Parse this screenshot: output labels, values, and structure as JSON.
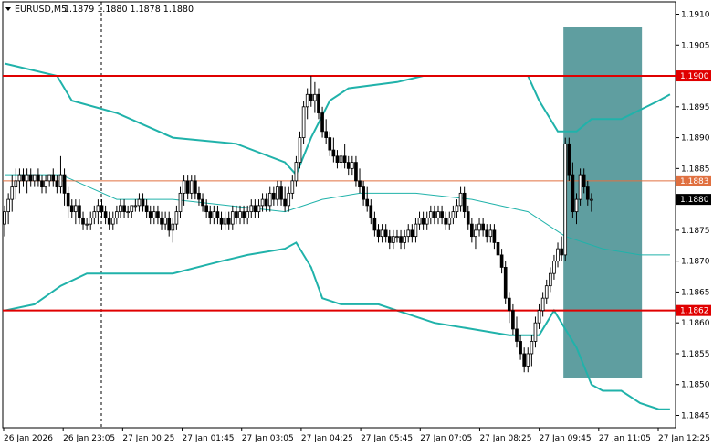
{
  "header": {
    "arrow_icon": "triangle-down-icon",
    "symbol": "EURUSD,M5",
    "ohlc": "1.1879 1.1880 1.1878 1.1880"
  },
  "colors": {
    "candle": "#000000",
    "bollinger": "#20b2aa",
    "level_line": "#e00000",
    "price_line": "#e07040",
    "highlight": "#5f9ea0",
    "current_price_bg": "#000000"
  },
  "chart_data": {
    "type": "candlestick",
    "symbol": "EURUSD",
    "timeframe": "M5",
    "ylim": [
      1.1843,
      1.1912
    ],
    "y_ticks": [
      "1.1910",
      "1.1905",
      "1.1900",
      "1.1895",
      "1.1890",
      "1.1885",
      "1.1880",
      "1.1875",
      "1.1870",
      "1.1865",
      "1.1860",
      "1.1855",
      "1.1850",
      "1.1845"
    ],
    "x_ticks": [
      "26 Jan 2026",
      "26 Jan 23:05",
      "27 Jan 00:25",
      "27 Jan 01:45",
      "27 Jan 03:05",
      "27 Jan 04:25",
      "27 Jan 05:45",
      "27 Jan 07:05",
      "27 Jan 08:25",
      "27 Jan 09:45",
      "27 Jan 11:05",
      "27 Jan 12:25"
    ],
    "horizontal_levels": [
      {
        "price": 1.19,
        "label": "1.1900",
        "style": "red-thick"
      },
      {
        "price": 1.1862,
        "label": "1.1862",
        "style": "red-thick"
      },
      {
        "price": 1.1883,
        "label": "1.1883",
        "style": "orange-thin"
      }
    ],
    "current_price": {
      "price": 1.188,
      "label": "1.1880"
    },
    "highlight_zone": {
      "x_start_bar": 150,
      "x_end_bar": 171,
      "y_from": 1.1908,
      "y_to": 1.1851
    },
    "bollinger_upper": [
      [
        0,
        1.1902
      ],
      [
        14,
        1.19
      ],
      [
        18,
        1.1896
      ],
      [
        30,
        1.1894
      ],
      [
        45,
        1.189
      ],
      [
        62,
        1.1889
      ],
      [
        75,
        1.1886
      ],
      [
        78,
        1.1884
      ],
      [
        82,
        1.189
      ],
      [
        87,
        1.1896
      ],
      [
        92,
        1.1898
      ],
      [
        105,
        1.1899
      ],
      [
        112,
        1.19
      ],
      [
        140,
        1.19
      ],
      [
        143,
        1.1896
      ],
      [
        148,
        1.1891
      ],
      [
        153,
        1.1891
      ],
      [
        157,
        1.1893
      ],
      [
        165,
        1.1893
      ],
      [
        175,
        1.1896
      ],
      [
        178,
        1.1897
      ]
    ],
    "bollinger_middle": [
      [
        0,
        1.1884
      ],
      [
        15,
        1.1884
      ],
      [
        30,
        1.188
      ],
      [
        45,
        1.188
      ],
      [
        60,
        1.1879
      ],
      [
        75,
        1.1878
      ],
      [
        85,
        1.188
      ],
      [
        95,
        1.1881
      ],
      [
        110,
        1.1881
      ],
      [
        125,
        1.188
      ],
      [
        140,
        1.1878
      ],
      [
        150,
        1.1874
      ],
      [
        160,
        1.1872
      ],
      [
        170,
        1.1871
      ],
      [
        178,
        1.1871
      ]
    ],
    "bollinger_lower": [
      [
        0,
        1.1862
      ],
      [
        8,
        1.1863
      ],
      [
        15,
        1.1866
      ],
      [
        22,
        1.1868
      ],
      [
        35,
        1.1868
      ],
      [
        45,
        1.1868
      ],
      [
        58,
        1.187
      ],
      [
        65,
        1.1871
      ],
      [
        75,
        1.1872
      ],
      [
        78,
        1.1873
      ],
      [
        82,
        1.1869
      ],
      [
        85,
        1.1864
      ],
      [
        90,
        1.1863
      ],
      [
        100,
        1.1863
      ],
      [
        110,
        1.1861
      ],
      [
        115,
        1.186
      ],
      [
        125,
        1.1859
      ],
      [
        135,
        1.1858
      ],
      [
        143,
        1.1858
      ],
      [
        147,
        1.1862
      ],
      [
        153,
        1.1856
      ],
      [
        157,
        1.185
      ],
      [
        160,
        1.1849
      ],
      [
        165,
        1.1849
      ],
      [
        170,
        1.1847
      ],
      [
        175,
        1.1846
      ],
      [
        178,
        1.1846
      ]
    ],
    "candles": [
      [
        1.1876,
        1.1879,
        1.1874,
        1.1878
      ],
      [
        1.1878,
        1.1881,
        1.1876,
        1.188
      ],
      [
        1.188,
        1.1884,
        1.1878,
        1.1882
      ],
      [
        1.1882,
        1.1885,
        1.188,
        1.1883
      ],
      [
        1.1883,
        1.1885,
        1.1881,
        1.1884
      ],
      [
        1.1884,
        1.1885,
        1.1882,
        1.1883
      ],
      [
        1.1883,
        1.1885,
        1.1881,
        1.1884
      ],
      [
        1.1884,
        1.1885,
        1.1882,
        1.1883
      ],
      [
        1.1883,
        1.1884,
        1.1882,
        1.1884
      ],
      [
        1.1884,
        1.1885,
        1.1882,
        1.1883
      ],
      [
        1.1883,
        1.1884,
        1.1881,
        1.1882
      ],
      [
        1.1882,
        1.1884,
        1.1881,
        1.1883
      ],
      [
        1.1883,
        1.1884,
        1.1882,
        1.1884
      ],
      [
        1.1884,
        1.1885,
        1.1882,
        1.1883
      ],
      [
        1.1883,
        1.1884,
        1.1881,
        1.1882
      ],
      [
        1.1882,
        1.1887,
        1.1881,
        1.1884
      ],
      [
        1.1884,
        1.1885,
        1.1879,
        1.1881
      ],
      [
        1.1881,
        1.1882,
        1.1877,
        1.1879
      ],
      [
        1.1879,
        1.188,
        1.1877,
        1.1878
      ],
      [
        1.1878,
        1.188,
        1.1876,
        1.1879
      ],
      [
        1.1879,
        1.188,
        1.1876,
        1.1877
      ],
      [
        1.1877,
        1.1878,
        1.1875,
        1.1876
      ],
      [
        1.1876,
        1.1877,
        1.1875,
        1.1876
      ],
      [
        1.1876,
        1.1878,
        1.1875,
        1.1877
      ],
      [
        1.1877,
        1.1879,
        1.1876,
        1.1878
      ],
      [
        1.1878,
        1.188,
        1.1876,
        1.1879
      ],
      [
        1.1879,
        1.188,
        1.1877,
        1.1878
      ],
      [
        1.1878,
        1.1879,
        1.1876,
        1.1877
      ],
      [
        1.1877,
        1.1878,
        1.1875,
        1.1876
      ],
      [
        1.1876,
        1.1878,
        1.1875,
        1.1877
      ],
      [
        1.1877,
        1.1879,
        1.1876,
        1.1878
      ],
      [
        1.1878,
        1.188,
        1.1877,
        1.1879
      ],
      [
        1.1879,
        1.188,
        1.1877,
        1.1878
      ],
      [
        1.1878,
        1.1879,
        1.1877,
        1.1878
      ],
      [
        1.1878,
        1.1879,
        1.1877,
        1.1879
      ],
      [
        1.1879,
        1.188,
        1.1878,
        1.1879
      ],
      [
        1.1879,
        1.1881,
        1.1878,
        1.188
      ],
      [
        1.188,
        1.1881,
        1.1878,
        1.1879
      ],
      [
        1.1879,
        1.188,
        1.1877,
        1.1878
      ],
      [
        1.1878,
        1.1879,
        1.1876,
        1.1877
      ],
      [
        1.1877,
        1.1879,
        1.1876,
        1.1878
      ],
      [
        1.1878,
        1.1879,
        1.1876,
        1.1877
      ],
      [
        1.1877,
        1.1878,
        1.1875,
        1.1876
      ],
      [
        1.1876,
        1.1878,
        1.1875,
        1.1877
      ],
      [
        1.1877,
        1.1878,
        1.1874,
        1.1875
      ],
      [
        1.1875,
        1.1877,
        1.1873,
        1.1876
      ],
      [
        1.1876,
        1.1879,
        1.1875,
        1.1878
      ],
      [
        1.1878,
        1.1882,
        1.1877,
        1.1881
      ],
      [
        1.1881,
        1.1884,
        1.1879,
        1.1883
      ],
      [
        1.1883,
        1.1884,
        1.188,
        1.1881
      ],
      [
        1.1881,
        1.1884,
        1.188,
        1.1883
      ],
      [
        1.1883,
        1.1884,
        1.188,
        1.1881
      ],
      [
        1.1881,
        1.1882,
        1.1879,
        1.188
      ],
      [
        1.188,
        1.1881,
        1.1878,
        1.1879
      ],
      [
        1.1879,
        1.188,
        1.1877,
        1.1878
      ],
      [
        1.1878,
        1.1879,
        1.1876,
        1.1877
      ],
      [
        1.1877,
        1.1879,
        1.1876,
        1.1878
      ],
      [
        1.1878,
        1.1879,
        1.1876,
        1.1877
      ],
      [
        1.1877,
        1.1878,
        1.1875,
        1.1876
      ],
      [
        1.1876,
        1.1878,
        1.1875,
        1.1877
      ],
      [
        1.1877,
        1.1878,
        1.1875,
        1.1876
      ],
      [
        1.1876,
        1.1879,
        1.1875,
        1.1878
      ],
      [
        1.1878,
        1.1879,
        1.1876,
        1.1877
      ],
      [
        1.1877,
        1.1879,
        1.1876,
        1.1878
      ],
      [
        1.1878,
        1.1879,
        1.1876,
        1.1877
      ],
      [
        1.1877,
        1.1879,
        1.1876,
        1.1878
      ],
      [
        1.1878,
        1.188,
        1.1877,
        1.1879
      ],
      [
        1.1879,
        1.188,
        1.1877,
        1.1878
      ],
      [
        1.1878,
        1.188,
        1.1877,
        1.1879
      ],
      [
        1.1879,
        1.1881,
        1.1878,
        1.188
      ],
      [
        1.188,
        1.1881,
        1.1878,
        1.1879
      ],
      [
        1.1879,
        1.1882,
        1.1878,
        1.1881
      ],
      [
        1.1881,
        1.1882,
        1.1879,
        1.188
      ],
      [
        1.188,
        1.1883,
        1.1879,
        1.1882
      ],
      [
        1.1882,
        1.1883,
        1.1879,
        1.188
      ],
      [
        1.188,
        1.1882,
        1.1878,
        1.1879
      ],
      [
        1.1879,
        1.1882,
        1.1878,
        1.1881
      ],
      [
        1.1881,
        1.1884,
        1.188,
        1.1883
      ],
      [
        1.1883,
        1.1887,
        1.1882,
        1.1886
      ],
      [
        1.1886,
        1.1891,
        1.1885,
        1.189
      ],
      [
        1.189,
        1.1896,
        1.1889,
        1.1895
      ],
      [
        1.1895,
        1.1898,
        1.1893,
        1.1897
      ],
      [
        1.1897,
        1.19,
        1.1895,
        1.1896
      ],
      [
        1.1896,
        1.1899,
        1.1894,
        1.1897
      ],
      [
        1.1897,
        1.1898,
        1.1893,
        1.1894
      ],
      [
        1.1894,
        1.1895,
        1.189,
        1.1891
      ],
      [
        1.1891,
        1.1893,
        1.1889,
        1.189
      ],
      [
        1.189,
        1.1891,
        1.1887,
        1.1888
      ],
      [
        1.1888,
        1.189,
        1.1886,
        1.1887
      ],
      [
        1.1887,
        1.1888,
        1.1885,
        1.1886
      ],
      [
        1.1886,
        1.1888,
        1.1885,
        1.1887
      ],
      [
        1.1887,
        1.1889,
        1.1885,
        1.1886
      ],
      [
        1.1886,
        1.1887,
        1.1884,
        1.1885
      ],
      [
        1.1885,
        1.1887,
        1.1884,
        1.1886
      ],
      [
        1.1886,
        1.1887,
        1.1882,
        1.1883
      ],
      [
        1.1883,
        1.1885,
        1.1881,
        1.1882
      ],
      [
        1.1882,
        1.1883,
        1.1879,
        1.188
      ],
      [
        1.188,
        1.1882,
        1.1878,
        1.1879
      ],
      [
        1.1879,
        1.188,
        1.1876,
        1.1877
      ],
      [
        1.1877,
        1.1878,
        1.1874,
        1.1875
      ],
      [
        1.1875,
        1.1876,
        1.1873,
        1.1874
      ],
      [
        1.1874,
        1.1876,
        1.1873,
        1.1875
      ],
      [
        1.1875,
        1.1876,
        1.1873,
        1.1874
      ],
      [
        1.1874,
        1.1875,
        1.1872,
        1.1873
      ],
      [
        1.1873,
        1.1875,
        1.1872,
        1.1874
      ],
      [
        1.1874,
        1.1875,
        1.1873,
        1.1874
      ],
      [
        1.1874,
        1.1875,
        1.1872,
        1.1873
      ],
      [
        1.1873,
        1.1875,
        1.1872,
        1.1874
      ],
      [
        1.1874,
        1.1876,
        1.1873,
        1.1875
      ],
      [
        1.1875,
        1.1876,
        1.1873,
        1.1874
      ],
      [
        1.1874,
        1.1877,
        1.1873,
        1.1876
      ],
      [
        1.1876,
        1.1878,
        1.1875,
        1.1877
      ],
      [
        1.1877,
        1.1878,
        1.1875,
        1.1876
      ],
      [
        1.1876,
        1.1878,
        1.1875,
        1.1877
      ],
      [
        1.1877,
        1.1879,
        1.1876,
        1.1878
      ],
      [
        1.1878,
        1.1879,
        1.1876,
        1.1877
      ],
      [
        1.1877,
        1.1879,
        1.1876,
        1.1878
      ],
      [
        1.1878,
        1.1879,
        1.1876,
        1.1877
      ],
      [
        1.1877,
        1.1878,
        1.1875,
        1.1876
      ],
      [
        1.1876,
        1.1878,
        1.1875,
        1.1877
      ],
      [
        1.1877,
        1.1879,
        1.1876,
        1.1878
      ],
      [
        1.1878,
        1.188,
        1.1877,
        1.1879
      ],
      [
        1.1879,
        1.1882,
        1.1878,
        1.1881
      ],
      [
        1.1881,
        1.1882,
        1.1877,
        1.1878
      ],
      [
        1.1878,
        1.1879,
        1.1875,
        1.1876
      ],
      [
        1.1876,
        1.1877,
        1.1873,
        1.1874
      ],
      [
        1.1874,
        1.1876,
        1.1872,
        1.1875
      ],
      [
        1.1875,
        1.1877,
        1.1874,
        1.1876
      ],
      [
        1.1876,
        1.1877,
        1.1874,
        1.1875
      ],
      [
        1.1875,
        1.1876,
        1.1873,
        1.1874
      ],
      [
        1.1874,
        1.1876,
        1.1873,
        1.1875
      ],
      [
        1.1875,
        1.1876,
        1.1872,
        1.1873
      ],
      [
        1.1873,
        1.1874,
        1.187,
        1.1871
      ],
      [
        1.1871,
        1.1872,
        1.1868,
        1.1869
      ],
      [
        1.1869,
        1.187,
        1.1863,
        1.1864
      ],
      [
        1.1864,
        1.1865,
        1.186,
        1.1862
      ],
      [
        1.1862,
        1.1863,
        1.1858,
        1.1859
      ],
      [
        1.1859,
        1.1861,
        1.1856,
        1.1857
      ],
      [
        1.1857,
        1.1858,
        1.1854,
        1.1855
      ],
      [
        1.1855,
        1.1856,
        1.1852,
        1.1853
      ],
      [
        1.1853,
        1.1856,
        1.1852,
        1.1855
      ],
      [
        1.1855,
        1.1858,
        1.1853,
        1.1857
      ],
      [
        1.1857,
        1.1861,
        1.1856,
        1.186
      ],
      [
        1.186,
        1.1863,
        1.1859,
        1.1862
      ],
      [
        1.1862,
        1.1865,
        1.1861,
        1.1864
      ],
      [
        1.1864,
        1.1867,
        1.1863,
        1.1866
      ],
      [
        1.1866,
        1.1869,
        1.1865,
        1.1868
      ],
      [
        1.1868,
        1.1871,
        1.1867,
        1.187
      ],
      [
        1.187,
        1.1873,
        1.1869,
        1.1872
      ],
      [
        1.1872,
        1.1874,
        1.187,
        1.1871
      ],
      [
        1.1871,
        1.189,
        1.187,
        1.1889
      ],
      [
        1.1889,
        1.189,
        1.1883,
        1.1884
      ],
      [
        1.1884,
        1.1886,
        1.1877,
        1.1878
      ],
      [
        1.1878,
        1.1881,
        1.1876,
        1.188
      ],
      [
        1.188,
        1.1885,
        1.1879,
        1.1884
      ],
      [
        1.1884,
        1.1885,
        1.1881,
        1.1882
      ],
      [
        1.1882,
        1.1883,
        1.1879,
        1.188
      ],
      [
        1.188,
        1.1881,
        1.1878,
        1.188
      ]
    ]
  }
}
